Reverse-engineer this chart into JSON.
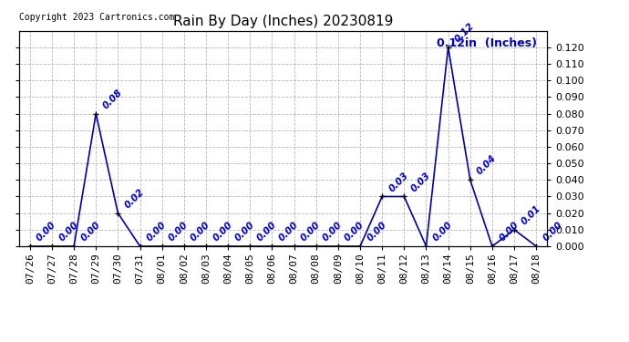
{
  "title": "Rain By Day (Inches) 20230819",
  "copyright": "Copyright 2023 Cartronics.com",
  "legend_label": "0.12in  (Inches)",
  "line_color": "#0000aa",
  "annotation_color": "#0000cc",
  "copyright_color": "#000000",
  "background_color": "#ffffff",
  "grid_color": "#999999",
  "dates": [
    "07/26",
    "07/27",
    "07/28",
    "07/29",
    "07/30",
    "07/31",
    "08/01",
    "08/02",
    "08/03",
    "08/04",
    "08/05",
    "08/06",
    "08/07",
    "08/08",
    "08/09",
    "08/10",
    "08/11",
    "08/12",
    "08/13",
    "08/14",
    "08/15",
    "08/16",
    "08/17",
    "08/18"
  ],
  "values": [
    0.0,
    0.0,
    0.0,
    0.08,
    0.02,
    0.0,
    0.0,
    0.0,
    0.0,
    0.0,
    0.0,
    0.0,
    0.0,
    0.0,
    0.0,
    0.0,
    0.03,
    0.03,
    0.0,
    0.12,
    0.04,
    0.0,
    0.01,
    0.0
  ],
  "ylim": [
    0.0,
    0.13
  ],
  "yticks": [
    0.0,
    0.01,
    0.02,
    0.03,
    0.04,
    0.05,
    0.06,
    0.07,
    0.08,
    0.09,
    0.1,
    0.11,
    0.12
  ],
  "marker": "+",
  "marker_size": 5,
  "marker_color": "#000000",
  "line_width": 1.2,
  "title_fontsize": 11,
  "tick_fontsize": 8,
  "annotation_fontsize": 7.5,
  "copyright_fontsize": 7,
  "legend_fontsize": 9
}
